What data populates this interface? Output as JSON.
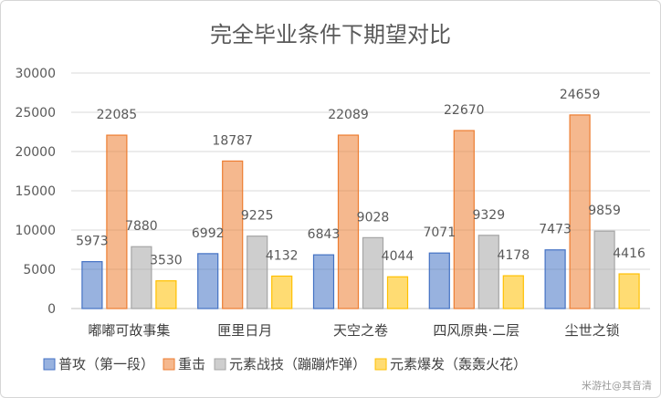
{
  "chart_data": {
    "type": "bar",
    "title": "完全毕业条件下期望对比",
    "categories": [
      "嘟嘟可故事集",
      "匣里日月",
      "天空之卷",
      "四风原典·二层",
      "尘世之锁"
    ],
    "series": [
      {
        "name": "普攻（第一段）",
        "color": "#4472c4",
        "values": [
          5973,
          6992,
          6843,
          7071,
          7473
        ]
      },
      {
        "name": "重击",
        "color": "#ed7d31",
        "values": [
          22085,
          18787,
          22089,
          22670,
          24659
        ]
      },
      {
        "name": "元素战技（蹦蹦炸弹）",
        "color": "#a5a5a5",
        "values": [
          7880,
          9225,
          9028,
          9329,
          9859
        ]
      },
      {
        "name": "元素爆发（轰轰火花）",
        "color": "#ffc000",
        "values": [
          3530,
          4132,
          4044,
          4178,
          4416
        ]
      }
    ],
    "ylim": [
      0,
      30000
    ],
    "yticks": [
      0,
      5000,
      10000,
      15000,
      20000,
      25000,
      30000
    ],
    "grid": true,
    "legend": "bottom"
  },
  "watermark": "米游社@其音清"
}
